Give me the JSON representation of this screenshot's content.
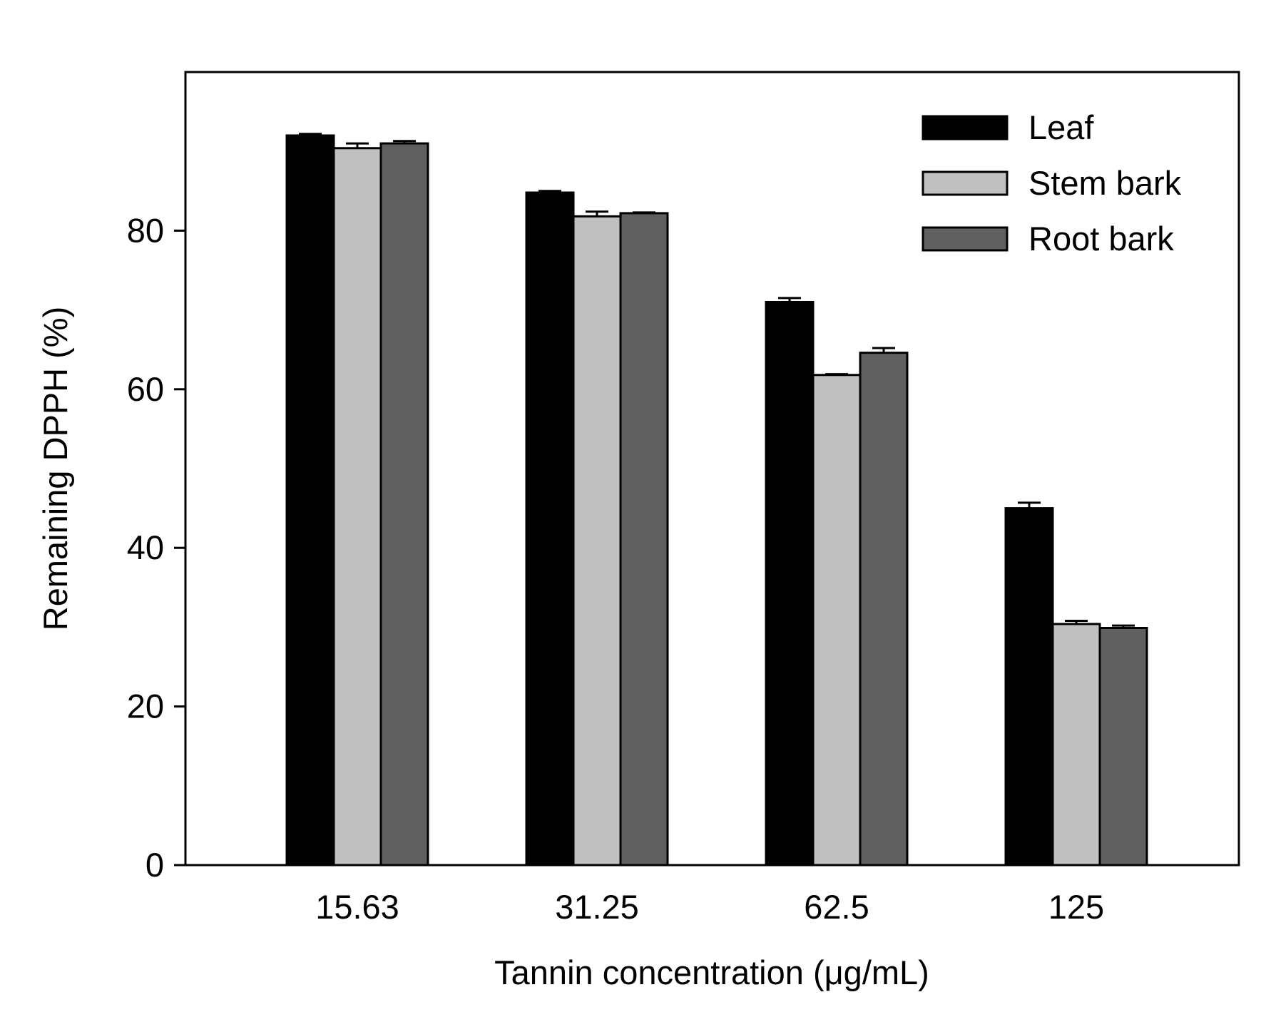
{
  "chart_data": {
    "type": "bar",
    "title": "",
    "xlabel": "Tannin concentration (μg/mL)",
    "ylabel": "Remaining DPPH (%)",
    "ylim": [
      0,
      100
    ],
    "yticks": [
      "0",
      "20",
      "40",
      "60",
      "80"
    ],
    "ytick_values": [
      0,
      20,
      40,
      60,
      80
    ],
    "categories": [
      "15.63",
      "31.25",
      "62.5",
      "125"
    ],
    "grid": false,
    "legend_position": "top-right",
    "series": [
      {
        "name": "Leaf",
        "color": "#000000",
        "values": [
          92.0,
          84.8,
          71.0,
          45.0
        ],
        "errors": [
          0.2,
          0.2,
          0.5,
          0.7
        ]
      },
      {
        "name": "Stem bark",
        "color": "#c0c0c0",
        "values": [
          90.4,
          81.8,
          61.8,
          30.4
        ],
        "errors": [
          0.6,
          0.6,
          0.1,
          0.4
        ]
      },
      {
        "name": "Root bark",
        "color": "#606060",
        "values": [
          91.0,
          82.2,
          64.6,
          29.9
        ],
        "errors": [
          0.3,
          0.1,
          0.6,
          0.3
        ]
      }
    ]
  }
}
